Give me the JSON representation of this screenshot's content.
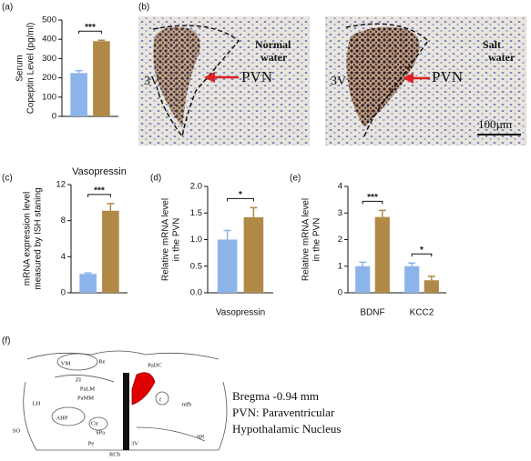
{
  "chart_data": [
    {
      "type": "bar",
      "panel_label": "(a)",
      "ylabel": [
        "Serum",
        "Copeptin Level (pg/ml)"
      ],
      "categories": [
        null
      ],
      "series": [
        {
          "color": "#8db4ea",
          "values": [
            225
          ],
          "errors": [
            12
          ]
        },
        {
          "color": "#b08947",
          "values": [
            390
          ],
          "errors": [
            5
          ]
        }
      ],
      "ylim": [
        0,
        500
      ],
      "yticks": [
        0,
        100,
        200,
        300,
        400,
        500
      ],
      "annotations": [
        "***"
      ]
    },
    {
      "type": "bar",
      "panel_label": "(c)",
      "title": "Vasopressin",
      "ylabel": [
        "mRNA expression  level",
        "measured by ISH staning"
      ],
      "categories": [
        null
      ],
      "series": [
        {
          "color": "#8db4ea",
          "values": [
            2.1
          ],
          "errors": [
            0.1
          ]
        },
        {
          "color": "#b08947",
          "values": [
            9.1
          ],
          "errors": [
            0.8
          ]
        }
      ],
      "ylim": [
        0,
        12
      ],
      "yticks": [
        0,
        4,
        8,
        12
      ],
      "annotations": [
        "***"
      ]
    },
    {
      "type": "bar",
      "panel_label": "(d)",
      "ylabel": [
        "Relative mRNA level",
        "in the PVN"
      ],
      "categories": [
        "Vasopressin"
      ],
      "series": [
        {
          "color": "#8db4ea",
          "values": [
            1.0
          ],
          "errors": [
            0.17
          ]
        },
        {
          "color": "#b08947",
          "values": [
            1.42
          ],
          "errors": [
            0.18
          ]
        }
      ],
      "ylim": [
        0,
        2
      ],
      "yticks": [
        {
          "value": 0,
          "label": "0.0"
        },
        0.5,
        {
          "value": 1,
          "label": "1.0"
        },
        1.5,
        {
          "value": 2,
          "label": "2.0"
        }
      ],
      "annotations": [
        "*"
      ]
    },
    {
      "type": "bar",
      "panel_label": "(e)",
      "ylabel": [
        "Relative mRNA level",
        "in the PVN"
      ],
      "categories": [
        "BDNF",
        "KCC2"
      ],
      "series": [
        {
          "color": "#8db4ea",
          "values": [
            1.0,
            1.0
          ],
          "errors": [
            0.15,
            0.12
          ]
        },
        {
          "color": "#b08947",
          "values": [
            2.85,
            0.47
          ],
          "errors": [
            0.25,
            0.15
          ]
        }
      ],
      "ylim": [
        0,
        4
      ],
      "yticks": [
        0,
        1,
        2,
        3,
        4
      ],
      "annotations": [
        "***",
        "*"
      ]
    }
  ],
  "micrographs": {
    "panel_label": "(b)",
    "images": [
      {
        "label": [
          "Normal",
          "water"
        ],
        "region": "PVN",
        "ventricle": "3V"
      },
      {
        "label": [
          "Salt",
          "water"
        ],
        "region": "PVN",
        "ventricle": "3V",
        "scale": "100µm"
      }
    ]
  },
  "atlas": {
    "panel_label": "(f)",
    "regions": [
      "VM",
      "Re",
      "ZI",
      "PaLM",
      "PaMM",
      "AHP",
      "Cir",
      "SPa",
      "Pe",
      "RCh",
      "3V",
      "LH",
      "SO",
      "f",
      "mfb",
      "opt",
      "PaDC"
    ],
    "legend": [
      "Bregma -0.94 mm",
      "PVN: Paraventricular",
      "Hypothalamic Nucleus"
    ]
  }
}
